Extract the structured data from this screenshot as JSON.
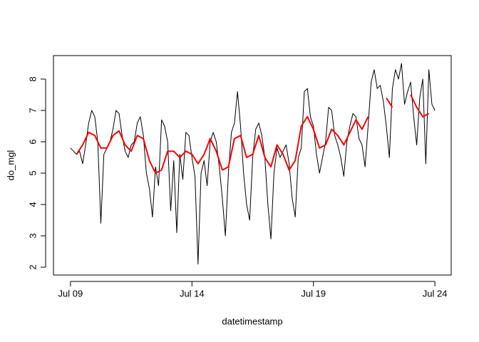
{
  "chart_data": {
    "type": "line",
    "x_label": "datetimestamp",
    "y_label": "do_mgl",
    "xlim": [
      8.3,
      24.67
    ],
    "ylim": [
      1.75,
      8.75
    ],
    "xticks": [
      {
        "value": 9,
        "label": "Jul 09"
      },
      {
        "value": 14,
        "label": "Jul 14"
      },
      {
        "value": 19,
        "label": "Jul 19"
      },
      {
        "value": 24,
        "label": "Jul 24"
      }
    ],
    "yticks": [
      2,
      3,
      4,
      5,
      6,
      7,
      8
    ],
    "series": [
      {
        "color": "#000000",
        "width": 1,
        "x": [
          9,
          9.125,
          9.25,
          9.375,
          9.5,
          9.625,
          9.75,
          9.875,
          10,
          10.125,
          10.25,
          10.375,
          10.5,
          10.625,
          10.75,
          10.875,
          11,
          11.125,
          11.25,
          11.375,
          11.5,
          11.625,
          11.75,
          11.875,
          12,
          12.125,
          12.25,
          12.375,
          12.5,
          12.625,
          12.75,
          12.875,
          13,
          13.125,
          13.25,
          13.375,
          13.5,
          13.625,
          13.75,
          13.875,
          14,
          14.125,
          14.25,
          14.375,
          14.5,
          14.625,
          14.75,
          14.875,
          15,
          15.125,
          15.25,
          15.375,
          15.5,
          15.625,
          15.75,
          15.875,
          16,
          16.125,
          16.25,
          16.375,
          16.5,
          16.625,
          16.75,
          16.875,
          17,
          17.125,
          17.25,
          17.375,
          17.5,
          17.625,
          17.75,
          17.875,
          18,
          18.125,
          18.25,
          18.375,
          18.5,
          18.625,
          18.75,
          18.875,
          19,
          19.125,
          19.25,
          19.375,
          19.5,
          19.625,
          19.75,
          19.875,
          20,
          20.125,
          20.25,
          20.375,
          20.5,
          20.625,
          20.75,
          20.875,
          21,
          21.125,
          21.25,
          21.375,
          21.5,
          21.625,
          21.75,
          21.875,
          22,
          22.125,
          22.25,
          22.375,
          22.5,
          22.625,
          22.75,
          22.875,
          23,
          23.125,
          23.25,
          23.375,
          23.5,
          23.625,
          23.75,
          23.875,
          24
        ],
        "values": [
          5.8,
          5.7,
          5.6,
          5.7,
          5.3,
          5.9,
          6.6,
          7.0,
          6.8,
          6.0,
          3.4,
          5.6,
          5.8,
          6.0,
          6.4,
          7.0,
          6.9,
          6.2,
          5.7,
          5.5,
          5.9,
          6.0,
          6.6,
          6.8,
          6.2,
          5.0,
          4.5,
          3.6,
          5.2,
          4.6,
          6.7,
          6.5,
          6.0,
          3.8,
          5.4,
          3.1,
          5.6,
          4.8,
          6.3,
          6.2,
          5.5,
          4.9,
          2.1,
          5.0,
          5.4,
          4.6,
          6.0,
          6.3,
          6.0,
          5.2,
          4.2,
          3.0,
          5.0,
          6.3,
          6.6,
          7.6,
          6.5,
          5.0,
          4.0,
          3.5,
          5.5,
          6.4,
          6.6,
          6.2,
          5.5,
          4.0,
          2.9,
          5.0,
          5.8,
          5.5,
          5.7,
          5.9,
          5.3,
          4.2,
          3.6,
          5.5,
          5.8,
          7.6,
          7.7,
          6.8,
          6.5,
          5.6,
          5.0,
          5.5,
          6.0,
          7.1,
          7.0,
          6.2,
          5.9,
          5.5,
          4.9,
          6.0,
          6.5,
          6.9,
          6.8,
          6.1,
          5.9,
          5.2,
          6.5,
          7.9,
          8.3,
          7.7,
          7.8,
          7.3,
          6.5,
          5.5,
          7.7,
          8.3,
          8.0,
          8.5,
          7.2,
          7.6,
          7.9,
          6.8,
          5.9,
          7.4,
          8.0,
          5.3,
          8.3,
          7.2,
          7.0
        ]
      },
      {
        "color": "#ff0000",
        "width": 2,
        "x": [
          9.25,
          9.5,
          9.75,
          10,
          10.25,
          10.5,
          10.75,
          11,
          11.25,
          11.5,
          11.75,
          12,
          12.25,
          12.5,
          12.75,
          13,
          13.25,
          13.5,
          13.75,
          14,
          14.25,
          14.5,
          14.75,
          15,
          15.25,
          15.5,
          15.75,
          16,
          16.25,
          16.5,
          16.75,
          17,
          17.25,
          17.5,
          17.75,
          18,
          18.25,
          18.5,
          18.75,
          19,
          19.25,
          19.5,
          19.75,
          20,
          20.25,
          20.5,
          20.75,
          21,
          21.25,
          21.5,
          21.75,
          22,
          22.25,
          22.5,
          22.75,
          23,
          23.25,
          23.5,
          23.75
        ],
        "values": [
          5.6,
          5.9,
          6.3,
          6.2,
          5.8,
          5.8,
          6.2,
          6.35,
          5.9,
          5.7,
          6.2,
          6.1,
          5.4,
          5.0,
          5.1,
          5.7,
          5.7,
          5.5,
          5.7,
          5.6,
          5.3,
          5.6,
          6.1,
          5.7,
          5.1,
          5.2,
          6.1,
          6.2,
          5.5,
          5.6,
          6.2,
          5.5,
          5.2,
          5.9,
          5.6,
          5.1,
          5.4,
          6.5,
          6.8,
          6.4,
          5.8,
          5.9,
          6.4,
          6.2,
          5.9,
          6.3,
          6.7,
          6.4,
          6.8,
          null,
          null,
          7.4,
          7.1,
          null,
          null,
          7.5,
          7.1,
          6.8,
          6.9
        ]
      }
    ]
  }
}
